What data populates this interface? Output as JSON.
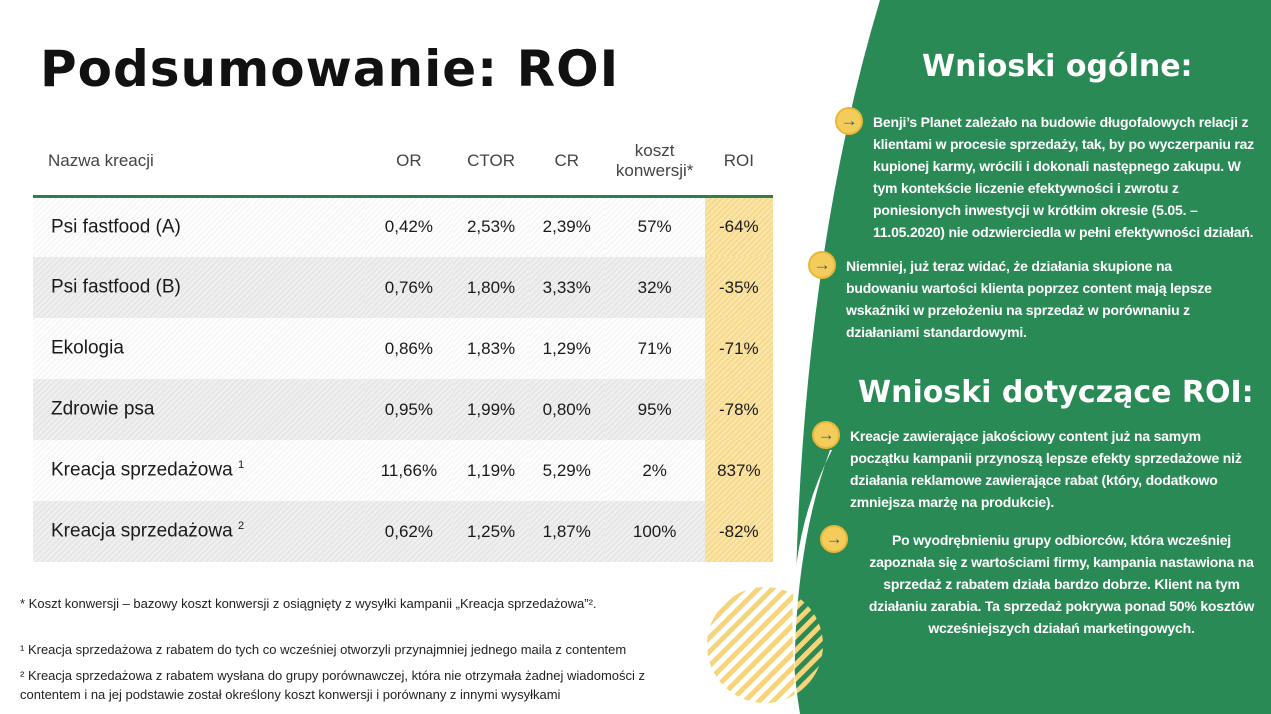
{
  "title": "Podsumowanie: ROI",
  "table": {
    "headers": [
      "Nazwa kreacji",
      "OR",
      "CTOR",
      "CR",
      "koszt konwersji*",
      "ROI"
    ],
    "rows": [
      {
        "name": "Psi fastfood  (A)",
        "sup": "",
        "or": "0,42%",
        "ctor": "2,53%",
        "cr": "2,39%",
        "koszt": "57%",
        "roi": "-64%"
      },
      {
        "name": "Psi fastfood  (B)",
        "sup": "",
        "or": "0,76%",
        "ctor": "1,80%",
        "cr": "3,33%",
        "koszt": "32%",
        "roi": "-35%"
      },
      {
        "name": "Ekologia",
        "sup": "",
        "or": "0,86%",
        "ctor": "1,83%",
        "cr": "1,29%",
        "koszt": "71%",
        "roi": "-71%"
      },
      {
        "name": "Zdrowie psa",
        "sup": "",
        "or": "0,95%",
        "ctor": "1,99%",
        "cr": "0,80%",
        "koszt": "95%",
        "roi": "-78%"
      },
      {
        "name": "Kreacja sprzedażowa ",
        "sup": "1",
        "or": "11,66%",
        "ctor": "1,19%",
        "cr": "5,29%",
        "koszt": "2%",
        "roi": "837%"
      },
      {
        "name": "Kreacja sprzedażowa ",
        "sup": "2",
        "or": "0,62%",
        "ctor": "1,25%",
        "cr": "1,87%",
        "koszt": "100%",
        "roi": "-82%"
      }
    ]
  },
  "footnotes": {
    "star": "* Koszt konwersji – bazowy koszt konwersji z osiągnięty z wysyłki kampanii „Kreacja sprzedażowa”².",
    "one": "¹ Kreacja sprzedażowa z rabatem do tych co wcześniej otworzyli przynajmniej jednego maila z contentem",
    "two": "² Kreacja sprzedażowa z rabatem wysłana do grupy porównawczej, która nie otrzymała żadnej wiadomości z contentem i na jej podstawie został określony koszt konwersji i porównany z innymi wysyłkami"
  },
  "right": {
    "heading1": "Wnioski ogólne:",
    "b1": "Benji’s Planet zależało na budowie długofalowych relacji z klientami w procesie sprzedaży, tak, by po wyczerpaniu raz kupionej karmy, wrócili i dokonali następnego zakupu. W tym kontekście liczenie efektywności i zwrotu z poniesionych inwestycji w krótkim okresie (5.05. – 11.05.2020) nie odzwierciedla w pełni efektywności działań.",
    "b2": "Niemniej, już teraz widać, że działania skupione na budowaniu wartości klienta poprzez content mają lepsze wskaźniki w przełożeniu na sprzedaż w porównaniu z działaniami standardowymi.",
    "heading2": "Wnioski dotyczące ROI:",
    "b3": "Kreacje zawierające jakościowy content już na samym początku kampanii przynoszą lepsze efekty sprzedażowe niż działania reklamowe zawierające rabat (który, dodatkowo zmniejsza marżę na produkcie).",
    "b4": "Po wyodrębnieniu grupy odbiorców, która wcześniej zapoznała się z wartościami firmy, kampania nastawiona na sprzedaż z rabatem działa bardzo dobrze. Klient na tym działaniu zarabia. Ta sprzedaż pokrywa ponad 50% kosztów wcześniejszych działań marketingowych.",
    "arrow": "→"
  },
  "colors": {
    "green": "#2a8a55",
    "yellow": "#f4cc5c"
  }
}
